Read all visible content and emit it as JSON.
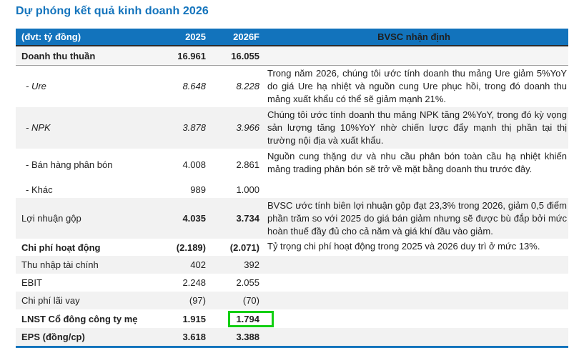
{
  "title": "Dự phóng kết quả kinh doanh 2026",
  "colors": {
    "accent_blue": "#1273BC",
    "header_bg": "#1273BC",
    "row_stripe": "#F2F2F2",
    "highlight_green": "#12CF12"
  },
  "table": {
    "header": {
      "unit": "(đvt: tỷ đồng)",
      "col_2025": "2025",
      "col_2026f": "2026F",
      "col_comment": "BVSC nhận định"
    },
    "rows": [
      {
        "label": "Doanh thu thuần",
        "v2025": "16.961",
        "v2026f": "16.055",
        "comment": ""
      },
      {
        "label": "- Ure",
        "v2025": "8.648",
        "v2026f": "8.228",
        "comment": "Trong năm 2026, chúng tôi ước tính doanh thu mảng Ure giảm 5%YoY do giá Ure hạ nhiệt và nguồn cung Ure phục hồi, trong đó doanh thu mảng xuất khẩu có thể sẽ giảm mạnh 21%."
      },
      {
        "label": "- NPK",
        "v2025": "3.878",
        "v2026f": "3.966",
        "comment": "Chúng tôi ước tính doanh thu mảng NPK tăng 2%YoY, trong đó kỳ vọng sản lượng tăng 10%YoY nhờ chiến lược đẩy mạnh thị phần tại thị trường nội địa và xuất khẩu."
      },
      {
        "label": "- Bán hàng phân bón",
        "v2025": "4.008",
        "v2026f": "2.861",
        "comment": "Nguồn cung thặng dư và nhu cầu phân bón toàn cầu hạ nhiệt khiến mảng trading phân bón sẽ trở về mặt bằng doanh thu trước đây."
      },
      {
        "label": "- Khác",
        "v2025": "989",
        "v2026f": "1.000",
        "comment": ""
      },
      {
        "label": "Lợi nhuận gộp",
        "v2025": "4.035",
        "v2026f": "3.734",
        "comment": "BVSC ước tính biên lợi nhuận gộp đạt 23,3% trong 2026, giảm 0,5 điểm phần trăm so với 2025 do giá bán giảm nhưng sẽ được bù đắp bởi mức hoàn thuế đầy đủ cho cả năm và giá khí đầu vào giảm."
      },
      {
        "label": "Chi phí hoạt động",
        "v2025": "(2.189)",
        "v2026f": "(2.071)",
        "comment": "Tỷ trọng chi phí hoạt động trong 2025 và 2026 duy trì ở mức 13%."
      },
      {
        "label": "Thu nhập tài chính",
        "v2025": "402",
        "v2026f": "392",
        "comment": ""
      },
      {
        "label": "EBIT",
        "v2025": "2.248",
        "v2026f": "2.055",
        "comment": ""
      },
      {
        "label": "Chi phí lãi vay",
        "v2025": "(97)",
        "v2026f": "(70)",
        "comment": ""
      },
      {
        "label": "LNST Cổ đông công ty mẹ",
        "v2025": "1.915",
        "v2026f": "1.794",
        "comment": ""
      },
      {
        "label": "EPS (đồng/cp)",
        "v2025": "3.618",
        "v2026f": "3.388",
        "comment": ""
      }
    ]
  }
}
